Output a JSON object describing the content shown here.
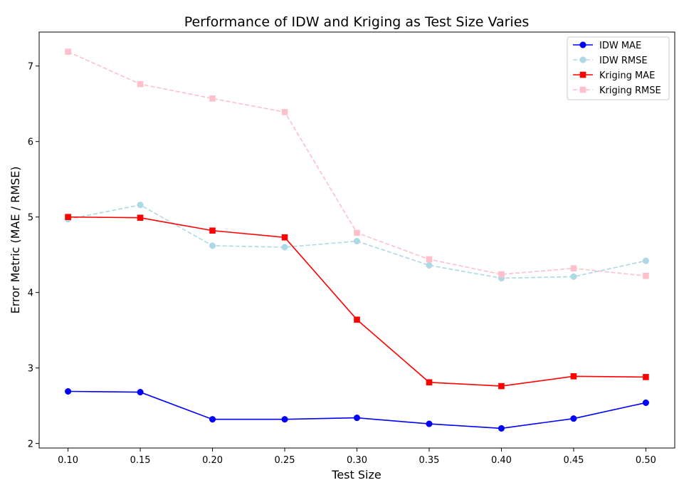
{
  "chart_data": {
    "type": "line",
    "title": "Performance of IDW and Kriging as Test Size Varies",
    "xlabel": "Test Size",
    "ylabel": "Error Metric (MAE / RMSE)",
    "x": [
      0.1,
      0.15,
      0.2,
      0.25,
      0.3,
      0.35,
      0.4,
      0.45,
      0.5
    ],
    "x_tick_labels": [
      "0.10",
      "0.15",
      "0.20",
      "0.25",
      "0.30",
      "0.35",
      "0.40",
      "0.45",
      "0.50"
    ],
    "y_ticks": [
      2,
      3,
      4,
      5,
      6,
      7
    ],
    "y_tick_labels": [
      "2",
      "3",
      "4",
      "5",
      "6",
      "7"
    ],
    "xlim": [
      0.08,
      0.52
    ],
    "ylim": [
      1.94,
      7.45
    ],
    "grid": false,
    "legend_position": "top-right",
    "series": [
      {
        "name": "IDW MAE",
        "color": "#0000ff",
        "marker": "circle",
        "linestyle": "solid",
        "values": [
          2.69,
          2.68,
          2.32,
          2.32,
          2.34,
          2.26,
          2.2,
          2.33,
          2.54
        ]
      },
      {
        "name": "IDW RMSE",
        "color": "#add8e6",
        "marker": "circle",
        "linestyle": "dashed",
        "values": [
          4.97,
          5.16,
          4.62,
          4.6,
          4.68,
          4.36,
          4.19,
          4.21,
          4.42
        ]
      },
      {
        "name": "Kriging MAE",
        "color": "#ff0000",
        "marker": "square",
        "linestyle": "solid",
        "values": [
          5.0,
          4.99,
          4.82,
          4.73,
          3.64,
          2.81,
          2.76,
          2.89,
          2.88
        ]
      },
      {
        "name": "Kriging RMSE",
        "color": "#ffc0cb",
        "marker": "square",
        "linestyle": "dashed",
        "values": [
          7.19,
          6.76,
          6.57,
          6.39,
          4.79,
          4.44,
          4.24,
          4.32,
          4.22
        ]
      }
    ]
  }
}
